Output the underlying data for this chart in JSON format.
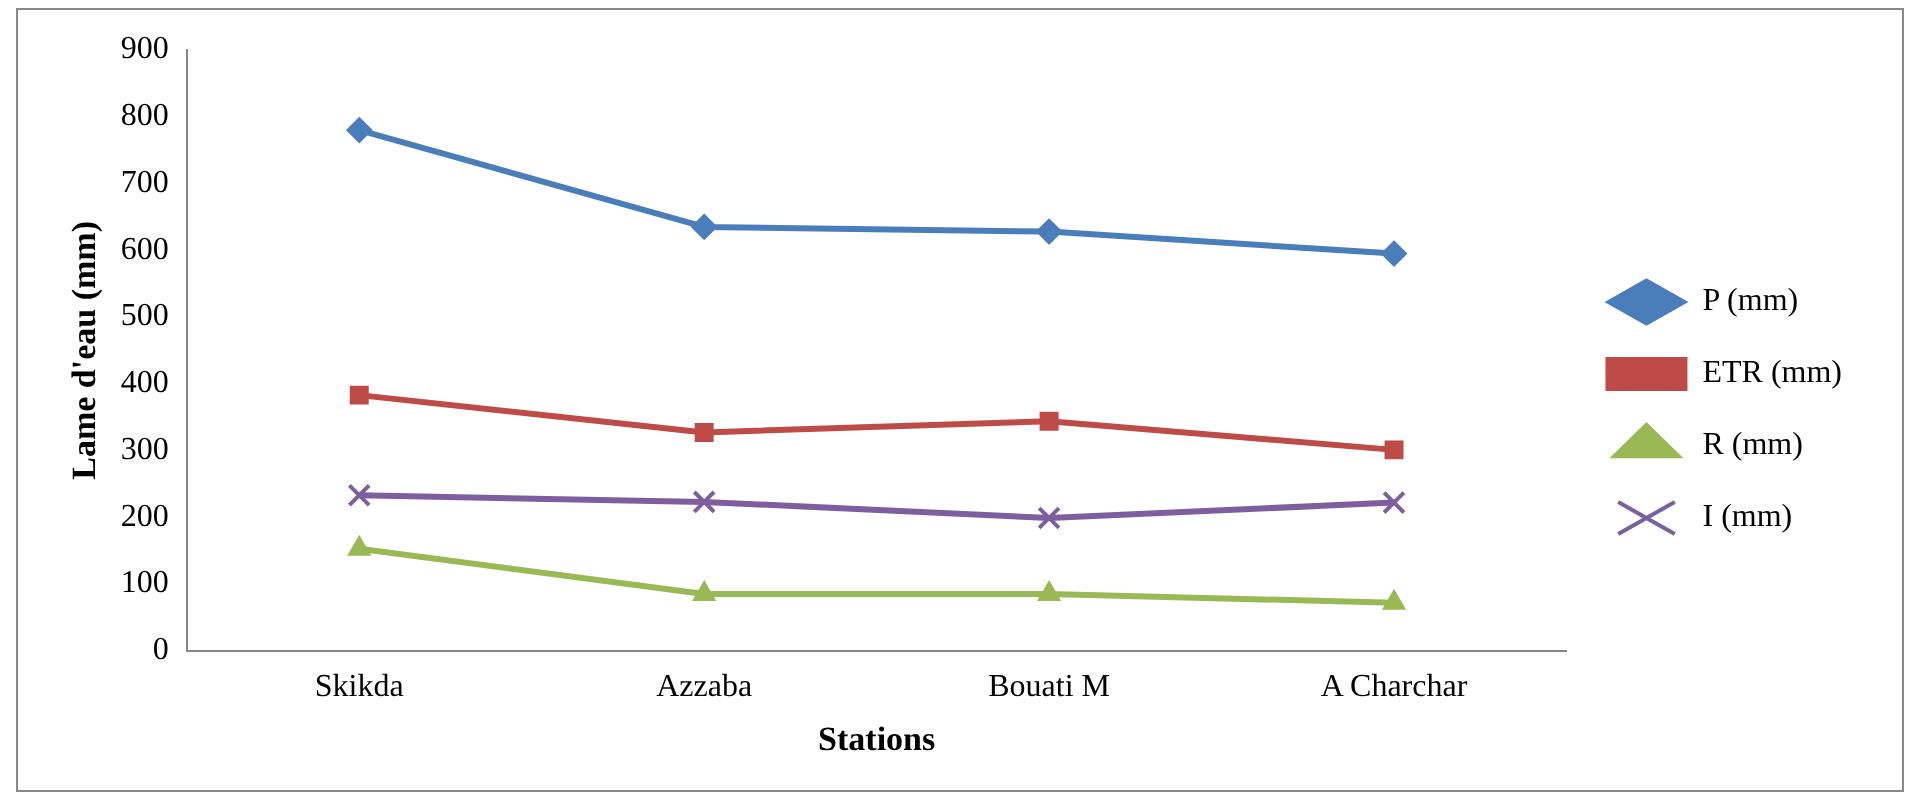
{
  "chart_data": {
    "type": "line",
    "xlabel": "Stations",
    "ylabel": "Lame d'eau (mm)",
    "categories": [
      "Skikda",
      "Azzaba",
      "Bouati M",
      "A Charchar"
    ],
    "series": [
      {
        "name": "P (mm)",
        "color": "#4a7ebb",
        "marker": "diamond",
        "values": [
          780,
          635,
          628,
          595
        ]
      },
      {
        "name": "ETR (mm)",
        "color": "#be4b48",
        "marker": "square",
        "values": [
          383,
          327,
          344,
          301
        ]
      },
      {
        "name": "R (mm)",
        "color": "#98b954",
        "marker": "triangle",
        "values": [
          153,
          85,
          85,
          72
        ]
      },
      {
        "name": "I (mm)",
        "color": "#7d5fa0",
        "marker": "cross",
        "values": [
          233,
          223,
          199,
          222
        ]
      }
    ],
    "ylim": [
      0,
      900
    ],
    "yticks": [
      0,
      100,
      200,
      300,
      400,
      500,
      600,
      700,
      800,
      900
    ],
    "grid": false,
    "legend": "right",
    "line_style": "solid"
  }
}
